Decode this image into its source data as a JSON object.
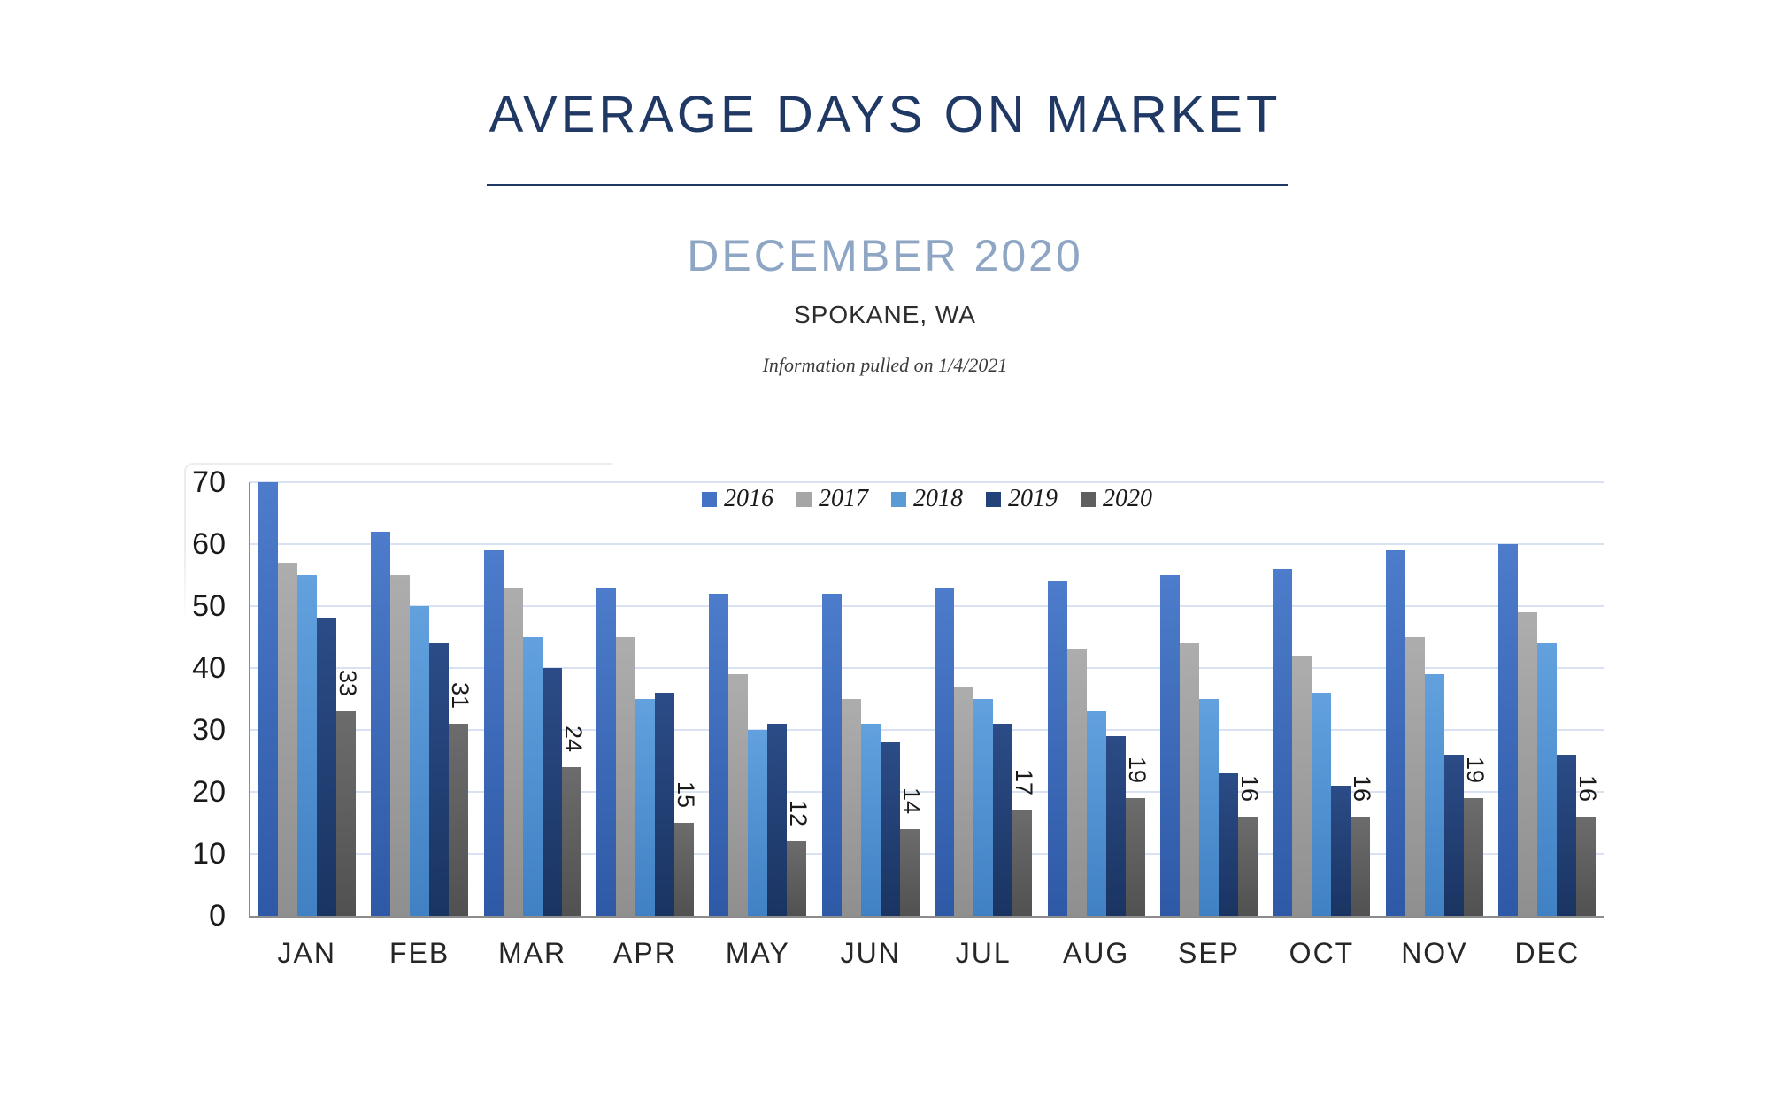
{
  "header": {
    "title": "AVERAGE DAYS ON MARKET",
    "subtitle": "DECEMBER 2020",
    "location": "SPOKANE, WA",
    "credit": "Information pulled on 1/4/2021"
  },
  "colors": {
    "title_navy": "#1f3864",
    "subtitle_blue_gray": "#8ea6c4",
    "gridline": "#d9e2f3",
    "axis_line": "#8c8c8c",
    "axis_text": "#1a1a1a"
  },
  "chart_data": {
    "type": "bar",
    "title": "Average days on market by month, 2016-2020",
    "categories": [
      "JAN",
      "FEB",
      "MAR",
      "APR",
      "MAY",
      "JUN",
      "JUL",
      "AUG",
      "SEP",
      "OCT",
      "NOV",
      "DEC"
    ],
    "series": [
      {
        "name": "2016",
        "values": [
          70,
          62,
          59,
          53,
          52,
          52,
          53,
          54,
          55,
          56,
          59,
          60
        ],
        "color_top": "#4c7ccb",
        "color_bottom": "#2e59a6",
        "legend_color": "#4472c4",
        "show_labels": false
      },
      {
        "name": "2017",
        "values": [
          57,
          55,
          53,
          45,
          39,
          35,
          37,
          43,
          44,
          42,
          45,
          49
        ],
        "color_top": "#adadad",
        "color_bottom": "#8f8f8f",
        "legend_color": "#a6a6a6",
        "show_labels": false
      },
      {
        "name": "2018",
        "values": [
          55,
          50,
          45,
          35,
          30,
          31,
          35,
          33,
          35,
          36,
          39,
          44
        ],
        "color_top": "#62a1de",
        "color_bottom": "#4081c4",
        "legend_color": "#5b9bd5",
        "show_labels": false
      },
      {
        "name": "2019",
        "values": [
          48,
          44,
          40,
          36,
          31,
          28,
          31,
          29,
          23,
          21,
          26,
          26
        ],
        "color_top": "#2b4c87",
        "color_bottom": "#1a3462",
        "legend_color": "#24427a",
        "show_labels": false
      },
      {
        "name": "2020",
        "values": [
          33,
          31,
          24,
          15,
          12,
          14,
          17,
          19,
          16,
          16,
          19,
          16
        ],
        "color_top": "#6c6c6c",
        "color_bottom": "#515151",
        "legend_color": "#5f5f5f",
        "show_labels": true
      }
    ],
    "xlabel": "",
    "ylabel": "",
    "ylim": [
      0,
      70
    ],
    "ytick_step": 10,
    "grid": true,
    "legend_position": "top-center",
    "data_label_rotation_deg": 90
  }
}
